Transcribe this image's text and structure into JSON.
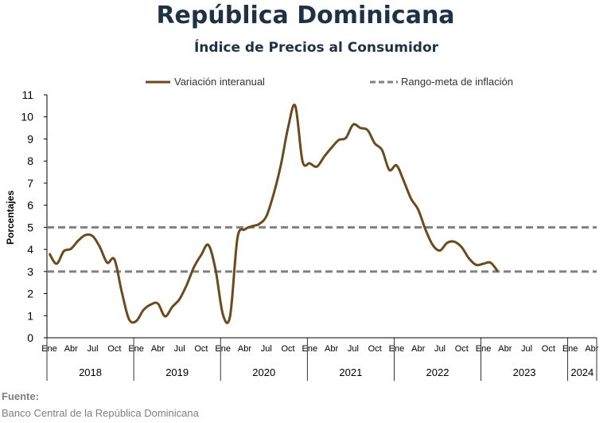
{
  "chart_data": {
    "type": "line",
    "title": "República Dominicana",
    "subtitle": "Índice de Precios al Consumidor",
    "ylabel": "Porcentajes",
    "xlabel": "",
    "ylim": [
      0,
      11
    ],
    "yticks": [
      "0",
      "1",
      "2",
      "3",
      "4",
      "5",
      "6",
      "7",
      "8",
      "9",
      "10",
      "11"
    ],
    "month_ticks": [
      "Ene",
      "Abr",
      "Jul",
      "Oct",
      "Ene",
      "Abr",
      "Jul",
      "Oct",
      "Ene",
      "Abr",
      "Jul",
      "Oct",
      "Ene",
      "Abr",
      "Jul",
      "Oct",
      "Ene",
      "Abr",
      "Jul",
      "Oct",
      "Ene",
      "Abr",
      "Jul",
      "Oct",
      "Ene",
      "Abr"
    ],
    "years": [
      "2018",
      "2019",
      "2020",
      "2021",
      "2022",
      "2023",
      "2024"
    ],
    "legend_position": "top",
    "grid": false,
    "series": [
      {
        "name": "Variación interanual",
        "color": "#6b4a1f",
        "style": "solid",
        "values": [
          3.82,
          3.35,
          3.92,
          4.03,
          4.4,
          4.65,
          4.6,
          4.1,
          3.4,
          3.55,
          2.1,
          0.85,
          0.75,
          1.25,
          1.5,
          1.55,
          0.97,
          1.4,
          1.75,
          2.4,
          3.2,
          3.75,
          4.2,
          3.05,
          1.05,
          1.0,
          4.5,
          4.9,
          5.05,
          5.15,
          5.5,
          6.5,
          7.8,
          9.5,
          10.5,
          8.0,
          7.9,
          7.75,
          8.2,
          8.6,
          8.95,
          9.05,
          9.65,
          9.5,
          9.4,
          8.8,
          8.5,
          7.6,
          7.8,
          7.1,
          6.3,
          5.8,
          4.9,
          4.2,
          3.95,
          4.3,
          4.35,
          4.1,
          3.6,
          3.3,
          3.35,
          3.4,
          3.0
        ]
      },
      {
        "name": "Rango-meta de inflación",
        "color": "#808080",
        "style": "dashed",
        "values": [
          5,
          3
        ]
      }
    ]
  },
  "source": {
    "label": "Fuente:",
    "text": "Banco Central de la República Dominicana"
  }
}
